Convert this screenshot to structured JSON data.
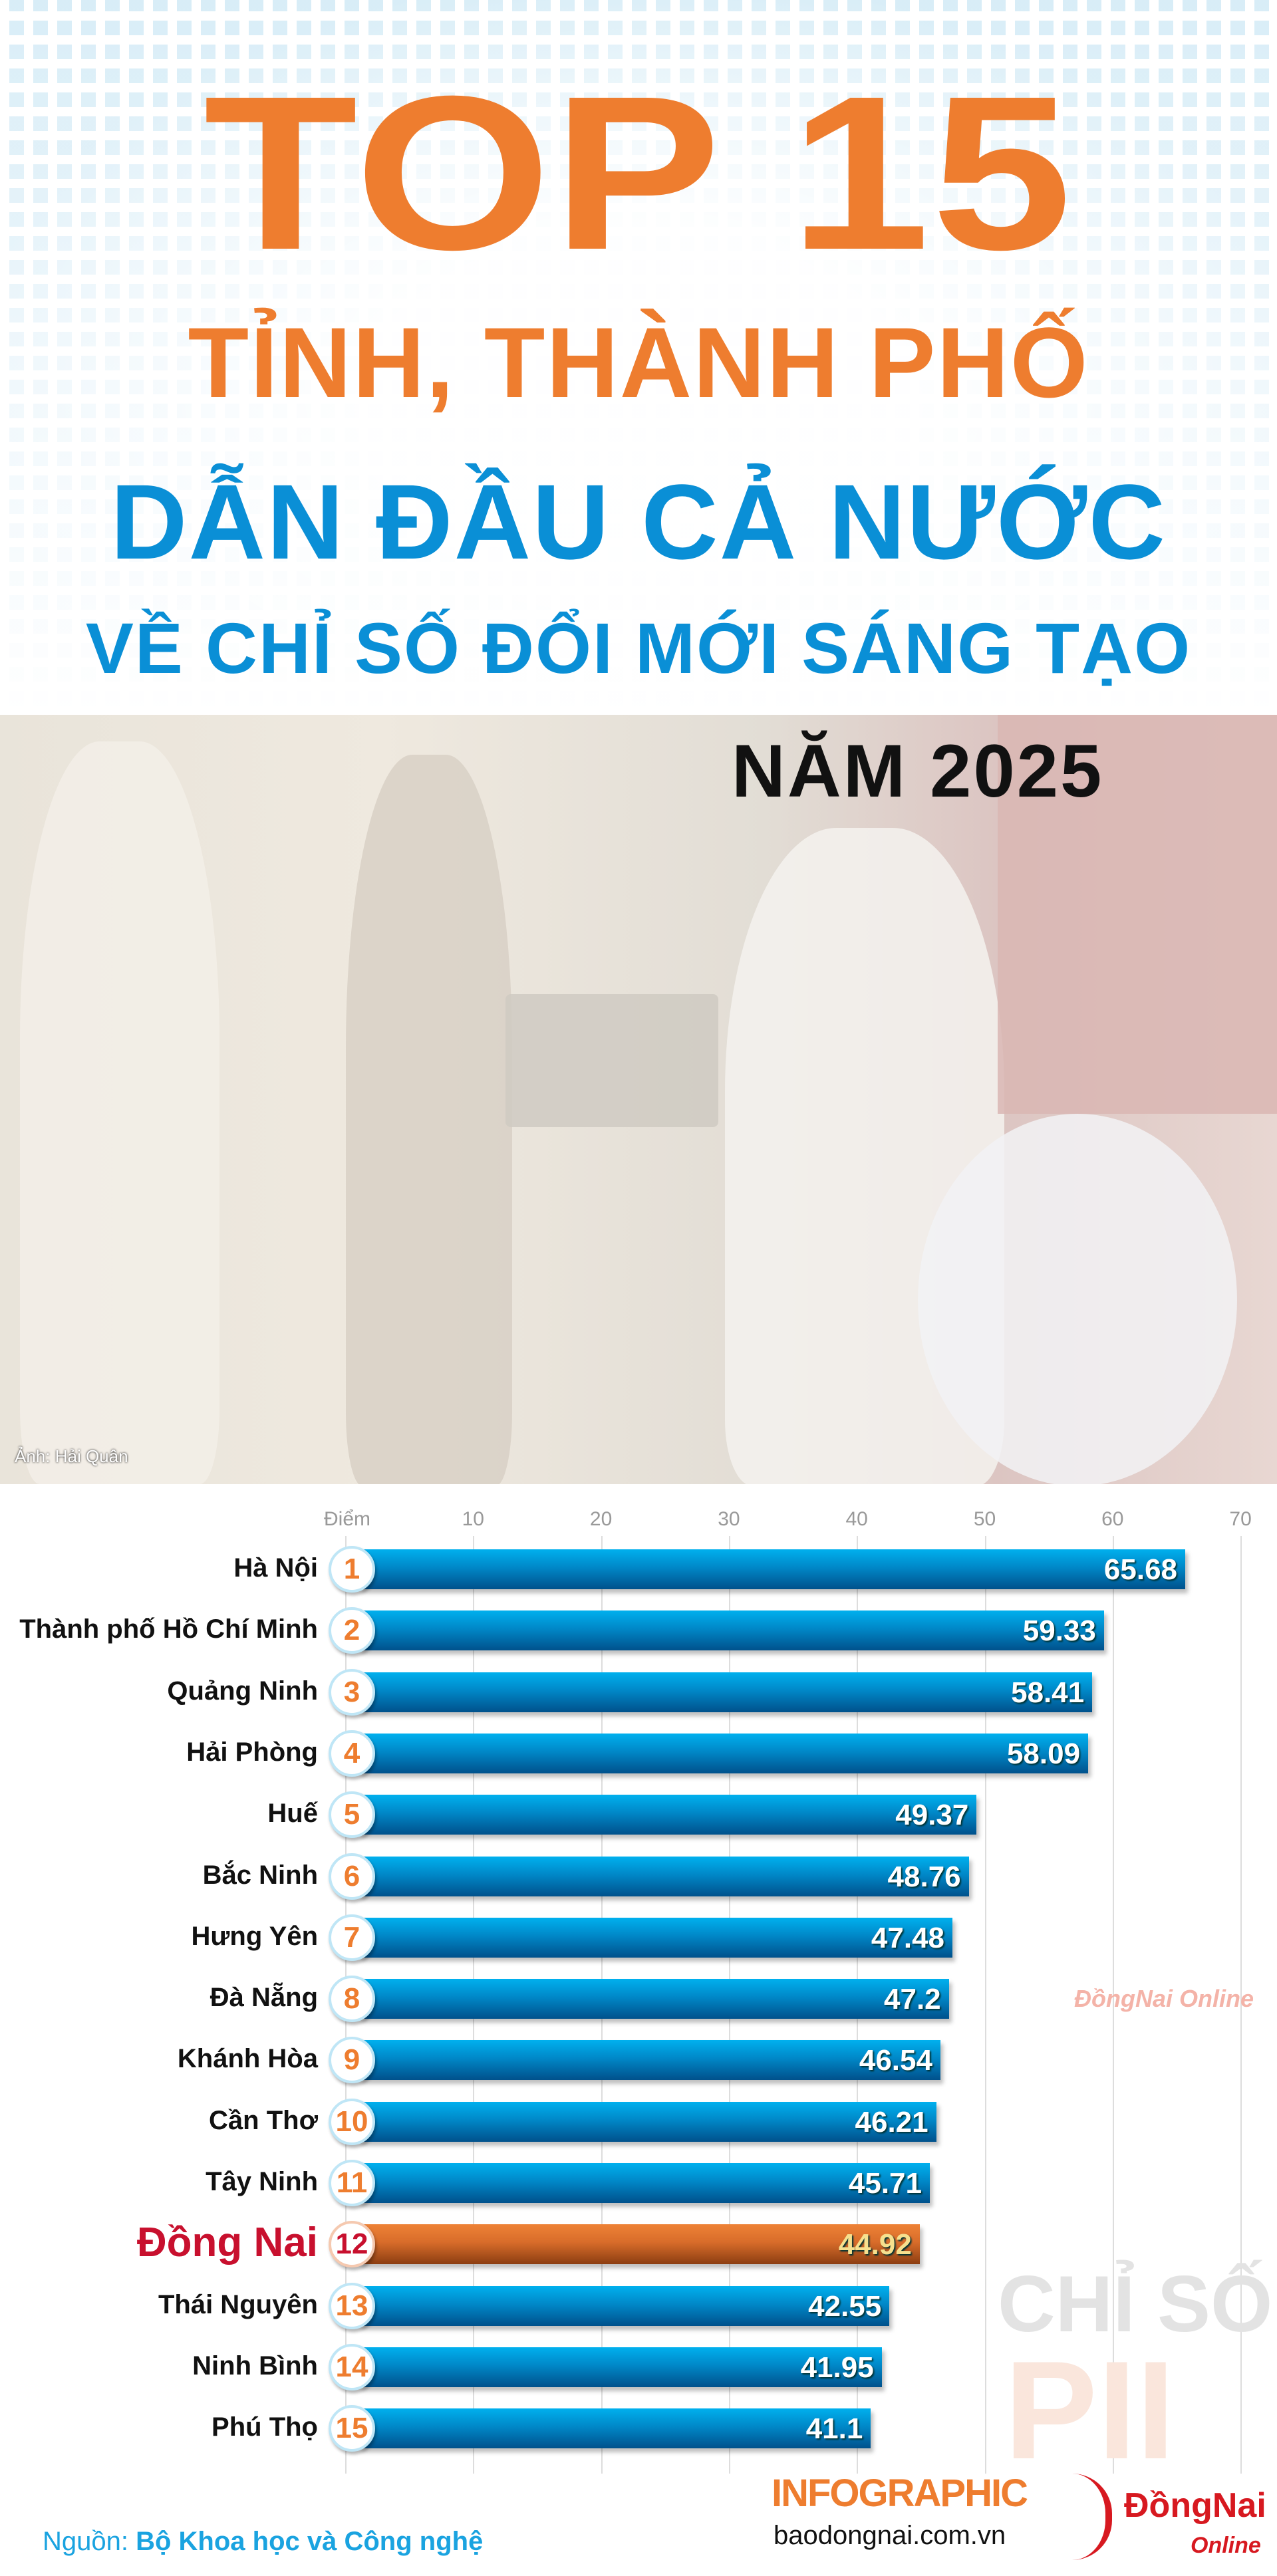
{
  "header": {
    "line1": "TOP 15",
    "line2": "TỈNH, THÀNH PHỐ",
    "line3": "DẪN ĐẦU CẢ NƯỚC",
    "line4": "VỀ CHỈ SỐ ĐỔI MỚI SÁNG TẠO",
    "year": "NĂM 2025"
  },
  "photo": {
    "credit": "Ảnh: Hải Quân"
  },
  "chart_data": {
    "type": "bar",
    "orientation": "horizontal",
    "xlabel": "Điểm",
    "xlim": [
      0,
      70
    ],
    "ticks": [
      10,
      20,
      30,
      40,
      50,
      60,
      70
    ],
    "grid": true,
    "highlight": "Đồng Nai",
    "categories": [
      "Hà Nội",
      "Thành phố Hồ Chí Minh",
      "Quảng Ninh",
      "Hải Phòng",
      "Huế",
      "Bắc Ninh",
      "Hưng Yên",
      "Đà Nẵng",
      "Khánh Hòa",
      "Cần Thơ",
      "Tây Ninh",
      "Đồng Nai",
      "Thái Nguyên",
      "Ninh Bình",
      "Phú Thọ"
    ],
    "ranks": [
      1,
      2,
      3,
      4,
      5,
      6,
      7,
      8,
      9,
      10,
      11,
      12,
      13,
      14,
      15
    ],
    "values": [
      65.68,
      59.33,
      58.41,
      58.09,
      49.37,
      48.76,
      47.48,
      47.2,
      46.54,
      46.21,
      45.71,
      44.92,
      42.55,
      41.95,
      41.1
    ]
  },
  "watermark": {
    "line1": "CHỈ SỐ",
    "line2": "PII",
    "brand": "ĐồngNai Online"
  },
  "footer": {
    "source_label": "Nguồn: ",
    "source": "Bộ Khoa học và Công nghệ",
    "infographic": "INFOGRAPHIC",
    "site": "baodongnai.com.vn",
    "logo": "ĐồngNai",
    "logo_sub": "Online"
  },
  "colors": {
    "orange": "#ee7d2f",
    "blue": "#0a8fd6",
    "highlight_red": "#c8102e"
  }
}
